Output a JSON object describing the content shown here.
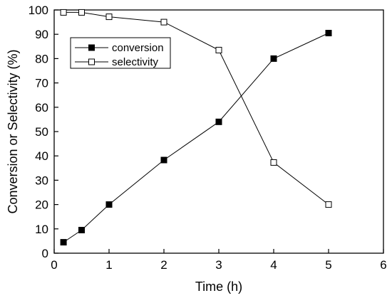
{
  "chart_data": {
    "type": "line",
    "title": "",
    "xlabel": "Time (h)",
    "ylabel": "Conversion or Selectivity (%)",
    "xlim": [
      0,
      6
    ],
    "ylim": [
      0,
      100
    ],
    "xticks": [
      "0",
      "1",
      "2",
      "3",
      "4",
      "5",
      "6"
    ],
    "yticks": [
      "0",
      "10",
      "20",
      "30",
      "40",
      "50",
      "60",
      "70",
      "80",
      "90",
      "100"
    ],
    "grid": false,
    "legend_position": "top-left",
    "series": [
      {
        "name": "conversion",
        "marker": "filled-square",
        "color": "#000000",
        "x": [
          0.17,
          0.5,
          1,
          2,
          3,
          4,
          5
        ],
        "y": [
          4.5,
          9.5,
          20,
          38.3,
          54,
          80,
          90.5
        ]
      },
      {
        "name": "selectivity",
        "marker": "open-square",
        "color": "#000000",
        "x": [
          0.17,
          0.5,
          1,
          2,
          3,
          4,
          5
        ],
        "y": [
          99,
          99,
          97.2,
          95,
          83.5,
          37.3,
          20
        ]
      }
    ]
  }
}
